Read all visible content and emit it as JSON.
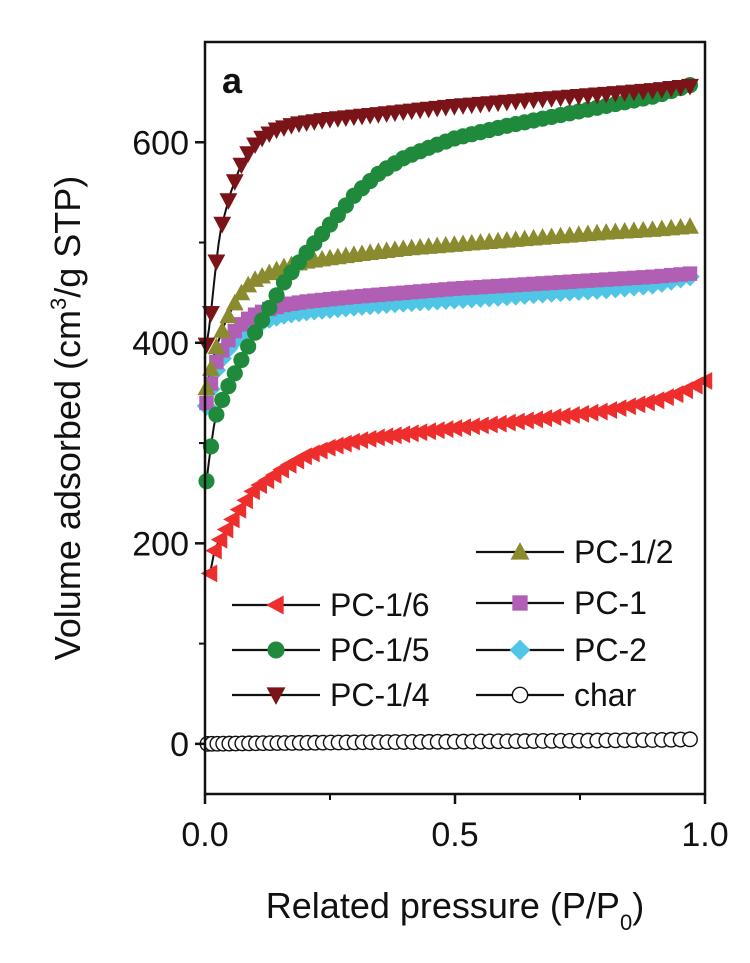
{
  "chart_data": {
    "type": "line",
    "panel_label": "a",
    "xlabel": "Related pressure (P/P0)",
    "xlabel_parts": {
      "main": "Related pressure (P/P",
      "sub": "0",
      "end": ")"
    },
    "ylabel": "Volume adsorbed (cm3/g STP)",
    "ylabel_parts": {
      "main": "Volume adsorbed (cm",
      "sup": "3",
      "end": "/g STP)"
    },
    "xlim": [
      0,
      1.0
    ],
    "ylim": [
      -50,
      700
    ],
    "xticks": [
      "0.0",
      "0.5",
      "1.0"
    ],
    "xtick_values": [
      0,
      0.5,
      1.0
    ],
    "yticks": [
      "0",
      "200",
      "400",
      "600"
    ],
    "ytick_values": [
      0,
      200,
      400,
      600
    ],
    "grid": false,
    "legend": "bottom-right",
    "series": [
      {
        "name": "PC-1/6",
        "color": "#ee2d2d",
        "marker": "triangle-left",
        "curve": [
          [
            0.01,
            170
          ],
          [
            0.02,
            195
          ],
          [
            0.04,
            212
          ],
          [
            0.06,
            228
          ],
          [
            0.08,
            242
          ],
          [
            0.1,
            255
          ],
          [
            0.13,
            265
          ],
          [
            0.16,
            276
          ],
          [
            0.2,
            287
          ],
          [
            0.25,
            296
          ],
          [
            0.3,
            302
          ],
          [
            0.35,
            306
          ],
          [
            0.4,
            309
          ],
          [
            0.5,
            315
          ],
          [
            0.6,
            320
          ],
          [
            0.7,
            326
          ],
          [
            0.8,
            332
          ],
          [
            0.9,
            342
          ],
          [
            0.95,
            350
          ],
          [
            1.0,
            362
          ]
        ]
      },
      {
        "name": "PC-1/5",
        "color": "#1f8a3c",
        "marker": "circle",
        "curve": [
          [
            0.003,
            262
          ],
          [
            0.01,
            290
          ],
          [
            0.02,
            325
          ],
          [
            0.04,
            350
          ],
          [
            0.06,
            370
          ],
          [
            0.08,
            390
          ],
          [
            0.1,
            410
          ],
          [
            0.13,
            436
          ],
          [
            0.16,
            462
          ],
          [
            0.2,
            488
          ],
          [
            0.25,
            518
          ],
          [
            0.3,
            548
          ],
          [
            0.35,
            570
          ],
          [
            0.4,
            585
          ],
          [
            0.45,
            595
          ],
          [
            0.5,
            604
          ],
          [
            0.6,
            616
          ],
          [
            0.7,
            626
          ],
          [
            0.8,
            636
          ],
          [
            0.9,
            646
          ],
          [
            0.97,
            657
          ]
        ]
      },
      {
        "name": "PC-1/4",
        "color": "#7a1418",
        "marker": "triangle-down",
        "curve": [
          [
            0.003,
            398
          ],
          [
            0.01,
            420
          ],
          [
            0.02,
            470
          ],
          [
            0.03,
            510
          ],
          [
            0.05,
            548
          ],
          [
            0.07,
            575
          ],
          [
            0.09,
            592
          ],
          [
            0.11,
            603
          ],
          [
            0.14,
            612
          ],
          [
            0.18,
            618
          ],
          [
            0.25,
            623
          ],
          [
            0.35,
            628
          ],
          [
            0.5,
            636
          ],
          [
            0.6,
            640
          ],
          [
            0.7,
            644
          ],
          [
            0.8,
            648
          ],
          [
            0.9,
            652
          ],
          [
            0.97,
            656
          ]
        ]
      },
      {
        "name": "PC-1/2",
        "color": "#8a8a2e",
        "marker": "triangle-up",
        "curve": [
          [
            0.003,
            355
          ],
          [
            0.01,
            370
          ],
          [
            0.02,
            392
          ],
          [
            0.04,
            420
          ],
          [
            0.06,
            440
          ],
          [
            0.08,
            455
          ],
          [
            0.1,
            463
          ],
          [
            0.13,
            470
          ],
          [
            0.16,
            476
          ],
          [
            0.2,
            481
          ],
          [
            0.3,
            488
          ],
          [
            0.4,
            494
          ],
          [
            0.5,
            498
          ],
          [
            0.6,
            502
          ],
          [
            0.7,
            506
          ],
          [
            0.8,
            510
          ],
          [
            0.9,
            513
          ],
          [
            0.97,
            516
          ]
        ]
      },
      {
        "name": "PC-1",
        "color": "#b05fb5",
        "marker": "square",
        "curve": [
          [
            0.003,
            340
          ],
          [
            0.01,
            355
          ],
          [
            0.02,
            378
          ],
          [
            0.04,
            398
          ],
          [
            0.06,
            412
          ],
          [
            0.08,
            422
          ],
          [
            0.1,
            428
          ],
          [
            0.13,
            434
          ],
          [
            0.16,
            438
          ],
          [
            0.2,
            441
          ],
          [
            0.3,
            446
          ],
          [
            0.4,
            450
          ],
          [
            0.5,
            454
          ],
          [
            0.6,
            457
          ],
          [
            0.7,
            460
          ],
          [
            0.8,
            463
          ],
          [
            0.9,
            466
          ],
          [
            0.97,
            469
          ]
        ]
      },
      {
        "name": "PC-2",
        "color": "#4fc6e6",
        "marker": "diamond",
        "curve": [
          [
            0.003,
            337
          ],
          [
            0.01,
            350
          ],
          [
            0.02,
            370
          ],
          [
            0.04,
            390
          ],
          [
            0.06,
            402
          ],
          [
            0.08,
            412
          ],
          [
            0.1,
            418
          ],
          [
            0.13,
            424
          ],
          [
            0.16,
            428
          ],
          [
            0.2,
            431
          ],
          [
            0.3,
            436
          ],
          [
            0.4,
            440
          ],
          [
            0.5,
            443
          ],
          [
            0.6,
            446
          ],
          [
            0.7,
            450
          ],
          [
            0.8,
            453
          ],
          [
            0.9,
            458
          ],
          [
            0.97,
            466
          ]
        ]
      },
      {
        "name": "char",
        "color": "#111111",
        "marker": "open-circle",
        "curve": [
          [
            0.005,
            0
          ],
          [
            0.1,
            0.6
          ],
          [
            0.3,
            1.5
          ],
          [
            0.5,
            2.2
          ],
          [
            0.7,
            3
          ],
          [
            0.9,
            3.8
          ],
          [
            0.97,
            4.5
          ]
        ]
      }
    ],
    "marker_count": 60,
    "line_color": "#111111"
  }
}
